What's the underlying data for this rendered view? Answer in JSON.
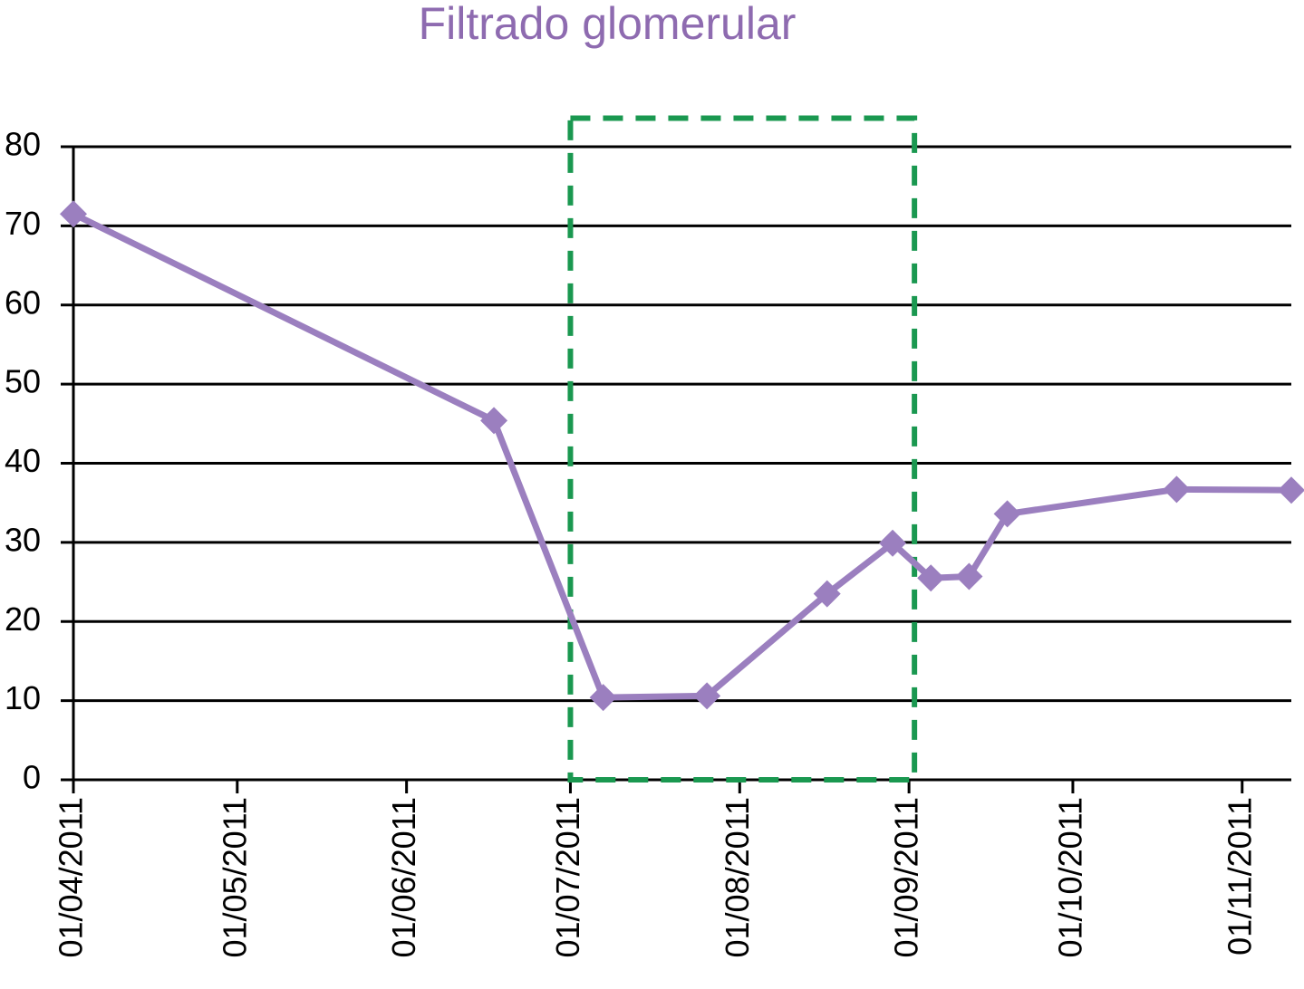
{
  "chart_data": {
    "type": "line",
    "title": "Filtrado glomerular",
    "title_color": "#8e6bb0",
    "x": [
      "2011-04-01",
      "2011-06-17",
      "2011-07-07",
      "2011-07-26",
      "2011-08-17",
      "2011-08-29",
      "2011-09-05",
      "2011-09-12",
      "2011-09-19",
      "2011-10-20",
      "2011-11-10"
    ],
    "values": [
      71.5,
      45.4,
      10.4,
      10.6,
      23.5,
      29.9,
      25.5,
      25.7,
      33.6,
      36.7,
      36.6
    ],
    "color": "#9b7fbf",
    "xlim": [
      "2011-04-01",
      "2011-11-10"
    ],
    "xticks": [
      {
        "value": "2011-04-01",
        "label": "01/04/2011"
      },
      {
        "value": "2011-05-01",
        "label": "01/05/2011"
      },
      {
        "value": "2011-06-01",
        "label": "01/06/2011"
      },
      {
        "value": "2011-07-01",
        "label": "01/07/2011"
      },
      {
        "value": "2011-08-01",
        "label": "01/08/2011"
      },
      {
        "value": "2011-09-01",
        "label": "01/09/2011"
      },
      {
        "value": "2011-10-01",
        "label": "01/10/2011"
      },
      {
        "value": "2011-11-01",
        "label": "01/11/2011"
      }
    ],
    "ylim": [
      0,
      80
    ],
    "yticks": [
      0,
      10,
      20,
      30,
      40,
      50,
      60,
      70,
      80
    ],
    "grid": true,
    "highlight": {
      "x": [
        "2011-07-01",
        "2011-09-02"
      ],
      "y": [
        0,
        83.6
      ],
      "color": "#1a9850"
    }
  }
}
